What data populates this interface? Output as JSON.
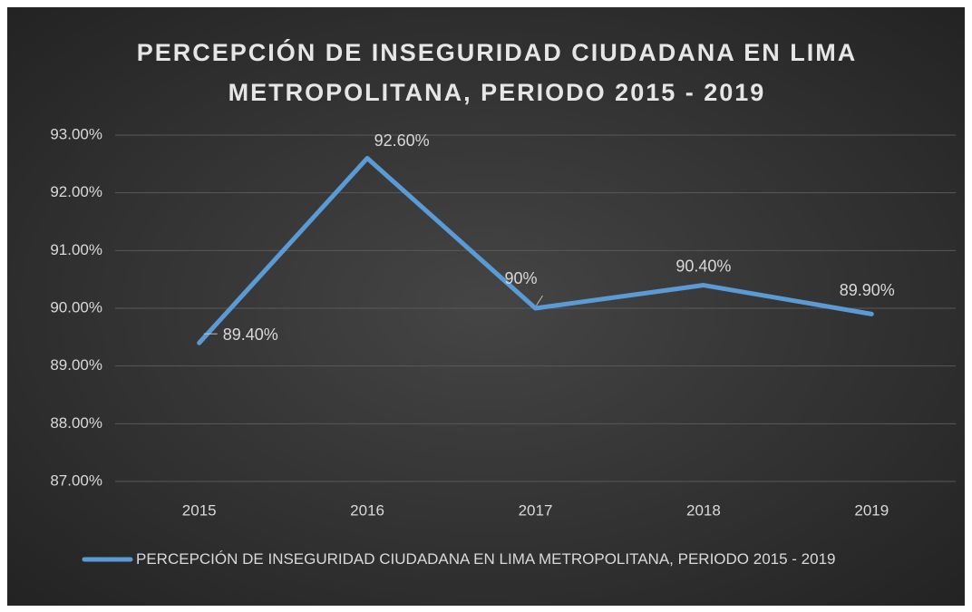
{
  "chart_data": {
    "type": "line",
    "title": "PERCEPCIÓN DE INSEGURIDAD CIUDADANA EN LIMA METROPOLITANA, PERIODO 2015 - 2019",
    "categories": [
      "2015",
      "2016",
      "2017",
      "2018",
      "2019"
    ],
    "series": [
      {
        "name": "PERCEPCIÓN DE INSEGURIDAD CIUDADANA EN LIMA METROPOLITANA, PERIODO 2015 - 2019",
        "color": "#5b9bd5",
        "values": [
          89.4,
          92.6,
          90,
          90.4,
          89.9
        ],
        "value_labels": [
          "89.40%",
          "92.60%",
          "90%",
          "90.40%",
          "89.90%"
        ]
      }
    ],
    "ylim": [
      87,
      93
    ],
    "yticks": [
      {
        "value": 87,
        "label": "87.00%"
      },
      {
        "value": 88,
        "label": "88.00%"
      },
      {
        "value": 89,
        "label": "89.00%"
      },
      {
        "value": 90,
        "label": "90.00%"
      },
      {
        "value": 91,
        "label": "91.00%"
      },
      {
        "value": 92,
        "label": "92.00%"
      },
      {
        "value": 93,
        "label": "93.00%"
      }
    ],
    "grid": true,
    "legend": "bottom"
  }
}
